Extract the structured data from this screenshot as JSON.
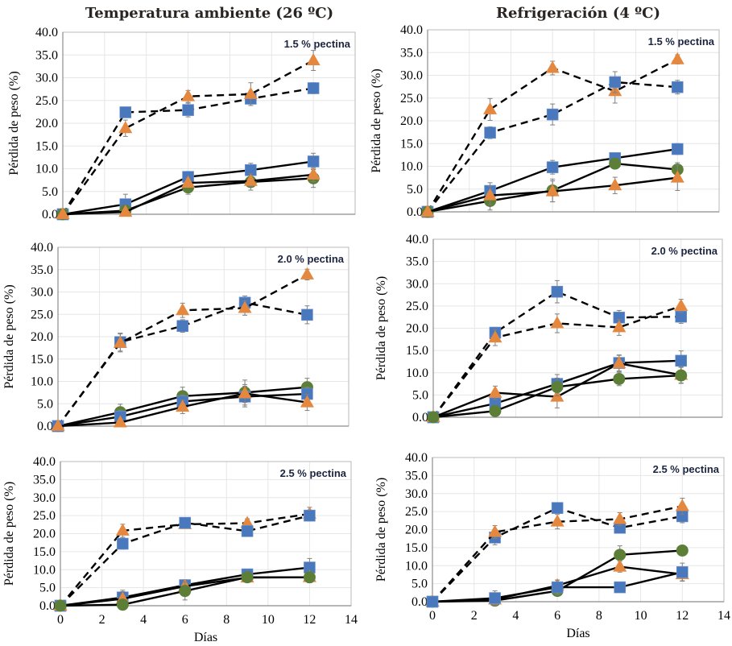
{
  "colors": {
    "blue": "#4a78bd",
    "orange": "#e4873f",
    "green": "#5c7e37",
    "line": "#000000",
    "grid": "#e6e6e6",
    "axis": "#8c8c8c",
    "errorbar": "#808080"
  },
  "columns": [
    {
      "title": "Temperatura ambiente (26 ºC)"
    },
    {
      "title": "Refrigeración (4 ºC)"
    }
  ],
  "chart_data": [
    {
      "type": "line",
      "column": "Temperatura ambiente (26 ºC)",
      "label": "1.5 % pectina",
      "xlabel": "",
      "ylabel": "Pérdida de peso (%)",
      "xlim": [
        0,
        14
      ],
      "ylim": [
        0,
        40
      ],
      "xticks": [],
      "yticks": [
        "0.0",
        "5.0",
        "10.0",
        "15.0",
        "20.0",
        "25.0",
        "30.0",
        "35.0",
        "40.0"
      ],
      "grid": true,
      "x": [
        0,
        3,
        6,
        9,
        12
      ],
      "series": [
        {
          "name": "blue-dashed",
          "marker": "square",
          "color": "blue",
          "style": "dashed",
          "values": [
            0,
            22.4,
            22.9,
            25.4,
            27.7
          ],
          "err": [
            0,
            1.0,
            1.5,
            1.5,
            1.2
          ]
        },
        {
          "name": "orange-dashed",
          "marker": "triangle",
          "color": "orange",
          "style": "dashed",
          "values": [
            0,
            18.9,
            25.9,
            26.4,
            33.8
          ],
          "err": [
            0,
            1.8,
            1.3,
            2.5,
            2.2
          ]
        },
        {
          "name": "blue-solid",
          "marker": "square",
          "color": "blue",
          "style": "solid",
          "values": [
            0,
            2.2,
            8.2,
            9.7,
            11.6
          ],
          "err": [
            0,
            2.2,
            1.2,
            1.5,
            1.8
          ]
        },
        {
          "name": "green-solid",
          "marker": "circle",
          "color": "green",
          "style": "solid",
          "values": [
            0,
            0.8,
            5.9,
            7.1,
            7.9
          ],
          "err": [
            0,
            0.5,
            1.5,
            1.8,
            2.0
          ]
        },
        {
          "name": "orange-solid",
          "marker": "triangle",
          "color": "orange",
          "style": "solid",
          "values": [
            0,
            0.5,
            6.9,
            7.3,
            8.7
          ],
          "err": [
            0,
            0.5,
            1.0,
            1.2,
            1.5
          ]
        }
      ]
    },
    {
      "type": "line",
      "column": "Refrigeración (4 ºC)",
      "label": "1.5 % pectina",
      "xlabel": "",
      "ylabel": "Pérdida de peso (%)",
      "xlim": [
        0,
        14
      ],
      "ylim": [
        0,
        40
      ],
      "xticks": [],
      "yticks": [
        "0.0",
        "5.0",
        "10.0",
        "15.0",
        "20.0",
        "25.0",
        "30.0",
        "35.0",
        "40.0"
      ],
      "grid": true,
      "x": [
        0,
        3,
        6,
        9,
        12
      ],
      "series": [
        {
          "name": "orange-dashed",
          "marker": "triangle",
          "color": "orange",
          "style": "dashed",
          "values": [
            0,
            22.5,
            31.6,
            26.5,
            33.5
          ],
          "err": [
            0,
            2.4,
            1.5,
            2.6,
            1.0
          ]
        },
        {
          "name": "blue-dashed",
          "marker": "square",
          "color": "blue",
          "style": "dashed",
          "values": [
            0,
            17.4,
            21.4,
            28.5,
            27.4
          ],
          "err": [
            0,
            1.3,
            2.3,
            2.3,
            1.5
          ]
        },
        {
          "name": "blue-solid",
          "marker": "square",
          "color": "blue",
          "style": "solid",
          "values": [
            0,
            4.6,
            9.8,
            11.8,
            13.8
          ],
          "err": [
            0,
            1.8,
            1.5,
            1.2,
            1.2
          ]
        },
        {
          "name": "green-solid",
          "marker": "circle",
          "color": "green",
          "style": "solid",
          "values": [
            0,
            2.4,
            4.7,
            10.6,
            9.3
          ],
          "err": [
            0,
            2.0,
            2.5,
            1.0,
            1.5
          ]
        },
        {
          "name": "orange-solid",
          "marker": "triangle",
          "color": "orange",
          "style": "solid",
          "values": [
            0,
            3.6,
            4.5,
            5.8,
            7.5
          ],
          "err": [
            0,
            2.0,
            2.3,
            1.8,
            2.8
          ]
        }
      ]
    },
    {
      "type": "line",
      "column": "Temperatura ambiente (26 ºC)",
      "label": "2.0 % pectina",
      "xlabel": "",
      "ylabel": "Pérdida de peso (%)",
      "xlim": [
        0,
        14
      ],
      "ylim": [
        0,
        40
      ],
      "xticks": [],
      "yticks": [
        "0.0",
        "5.0",
        "10.0",
        "15.0",
        "20.0",
        "25.0",
        "30.0",
        "35.0",
        "40.0"
      ],
      "grid": true,
      "x": [
        0,
        3,
        6,
        9,
        12
      ],
      "series": [
        {
          "name": "blue-dashed",
          "marker": "square",
          "color": "blue",
          "style": "dashed",
          "values": [
            0,
            18.8,
            22.4,
            27.6,
            24.9
          ],
          "err": [
            0,
            2.0,
            1.4,
            1.5,
            2.0
          ]
        },
        {
          "name": "orange-dashed",
          "marker": "triangle",
          "color": "orange",
          "style": "dashed",
          "values": [
            0,
            18.6,
            25.9,
            26.4,
            33.9
          ],
          "err": [
            0,
            2.0,
            1.6,
            1.6,
            1.2
          ]
        },
        {
          "name": "green-solid",
          "marker": "circle",
          "color": "green",
          "style": "solid",
          "values": [
            0,
            3.1,
            6.7,
            7.5,
            8.7
          ],
          "err": [
            0,
            1.8,
            2.0,
            2.8,
            2.0
          ]
        },
        {
          "name": "blue-solid",
          "marker": "square",
          "color": "blue",
          "style": "solid",
          "values": [
            0,
            2.1,
            5.5,
            6.6,
            7.2
          ],
          "err": [
            0,
            1.5,
            1.5,
            2.3,
            1.5
          ]
        },
        {
          "name": "orange-solid",
          "marker": "triangle",
          "color": "orange",
          "style": "solid",
          "values": [
            0,
            0.8,
            4.3,
            7.3,
            5.3
          ],
          "err": [
            0,
            0.5,
            1.5,
            2.0,
            1.8
          ]
        }
      ]
    },
    {
      "type": "line",
      "column": "Refrigeración (4 ºC)",
      "label": "2.0 % pectina",
      "xlabel": "",
      "ylabel": "Pérdida de peso (%)",
      "xlim": [
        0,
        14
      ],
      "ylim": [
        0,
        40
      ],
      "xticks": [],
      "yticks": [
        "0.0",
        "5.0",
        "10.0",
        "15.0",
        "20.0",
        "25.0",
        "30.0",
        "35.0",
        "40.0"
      ],
      "grid": true,
      "x": [
        0,
        3,
        6,
        9,
        12
      ],
      "series": [
        {
          "name": "blue-dashed",
          "marker": "square",
          "color": "blue",
          "style": "dashed",
          "values": [
            0,
            19.0,
            28.2,
            22.4,
            22.6
          ],
          "err": [
            0,
            1.2,
            2.5,
            1.6,
            1.5
          ]
        },
        {
          "name": "orange-dashed",
          "marker": "triangle",
          "color": "orange",
          "style": "dashed",
          "values": [
            0,
            17.9,
            21.1,
            20.2,
            25.0
          ],
          "err": [
            0,
            1.8,
            2.1,
            1.8,
            1.5
          ]
        },
        {
          "name": "blue-solid",
          "marker": "square",
          "color": "blue",
          "style": "solid",
          "values": [
            0,
            3.1,
            7.5,
            12.2,
            12.7
          ],
          "err": [
            0,
            1.5,
            2.1,
            1.8,
            2.2
          ]
        },
        {
          "name": "orange-solid",
          "marker": "triangle",
          "color": "orange",
          "style": "solid",
          "values": [
            0,
            5.5,
            4.6,
            12.1,
            9.5
          ],
          "err": [
            0,
            1.5,
            2.5,
            1.8,
            1.8
          ]
        },
        {
          "name": "green-solid",
          "marker": "circle",
          "color": "green",
          "style": "solid",
          "values": [
            0,
            1.4,
            6.8,
            8.6,
            9.4
          ],
          "err": [
            0,
            0.8,
            2.0,
            1.5,
            1.8
          ]
        }
      ]
    },
    {
      "type": "line",
      "column": "Temperatura ambiente (26 ºC)",
      "label": "2.5 % pectina",
      "xlabel": "Días",
      "ylabel": "Pérdida de peso (%)",
      "xlim": [
        0,
        14
      ],
      "ylim": [
        0,
        40
      ],
      "xticks": [
        "0",
        "2",
        "4",
        "6",
        "8",
        "10",
        "12",
        "14"
      ],
      "yticks": [
        "0.0",
        "5.0",
        "10.0",
        "15.0",
        "20.0",
        "25.0",
        "30.0",
        "35.0",
        "40.0"
      ],
      "grid": true,
      "x": [
        0,
        3,
        6,
        9,
        12
      ],
      "series": [
        {
          "name": "orange-dashed",
          "marker": "triangle",
          "color": "orange",
          "style": "dashed",
          "values": [
            0,
            20.8,
            22.6,
            22.9,
            25.5
          ],
          "err": [
            0,
            1.8,
            1.0,
            1.2,
            1.8
          ]
        },
        {
          "name": "blue-dashed",
          "marker": "square",
          "color": "blue",
          "style": "dashed",
          "values": [
            0,
            17.2,
            23.0,
            20.7,
            25.0
          ],
          "err": [
            0,
            1.5,
            1.2,
            1.0,
            1.5
          ]
        },
        {
          "name": "blue-solid",
          "marker": "square",
          "color": "blue",
          "style": "solid",
          "values": [
            0,
            2.3,
            5.7,
            8.7,
            10.6
          ],
          "err": [
            0,
            2.0,
            1.5,
            1.2,
            2.5
          ]
        },
        {
          "name": "orange-solid",
          "marker": "triangle",
          "color": "orange",
          "style": "solid",
          "values": [
            0,
            1.9,
            5.4,
            7.8,
            7.9
          ],
          "err": [
            0,
            2.0,
            1.5,
            1.0,
            1.5
          ]
        },
        {
          "name": "green-solid",
          "marker": "circle",
          "color": "green",
          "style": "solid",
          "values": [
            0,
            0.3,
            4.1,
            7.9,
            7.9
          ],
          "err": [
            0,
            0.5,
            2.5,
            1.2,
            1.5
          ]
        }
      ]
    },
    {
      "type": "line",
      "column": "Refrigeración (4 ºC)",
      "label": "2.5 % pectina",
      "xlabel": "Días",
      "ylabel": "Pérdida de peso (%)",
      "xlim": [
        0,
        14
      ],
      "ylim": [
        0,
        40
      ],
      "xticks": [
        "0",
        "2",
        "4",
        "6",
        "8",
        "10",
        "12",
        "14"
      ],
      "yticks": [
        "0.0",
        "5.0",
        "10.0",
        "15.0",
        "20.0",
        "25.0",
        "30.0",
        "35.0",
        "40.0"
      ],
      "grid": true,
      "x": [
        0,
        3,
        6,
        9,
        12
      ],
      "series": [
        {
          "name": "blue-dashed",
          "marker": "square",
          "color": "blue",
          "style": "dashed",
          "values": [
            0,
            17.8,
            26.0,
            20.5,
            23.7
          ],
          "err": [
            0,
            2.0,
            1.2,
            1.2,
            1.8
          ]
        },
        {
          "name": "orange-dashed",
          "marker": "triangle",
          "color": "orange",
          "style": "dashed",
          "values": [
            0,
            19.3,
            22.2,
            22.9,
            26.5
          ],
          "err": [
            0,
            1.8,
            2.0,
            1.8,
            2.2
          ]
        },
        {
          "name": "green-solid",
          "marker": "circle",
          "color": "green",
          "style": "solid",
          "values": [
            0,
            0.3,
            3.0,
            13.0,
            14.2
          ],
          "err": [
            0,
            0.5,
            1.0,
            2.5,
            0.8
          ]
        },
        {
          "name": "orange-solid",
          "marker": "triangle",
          "color": "orange",
          "style": "solid",
          "values": [
            0,
            0.6,
            4.5,
            9.7,
            7.6
          ],
          "err": [
            0,
            1.5,
            1.5,
            1.5,
            1.8
          ]
        },
        {
          "name": "blue-solid",
          "marker": "square",
          "color": "blue",
          "style": "solid",
          "values": [
            0,
            1.0,
            4.0,
            4.0,
            8.2
          ],
          "err": [
            0,
            2.0,
            2.0,
            0.5,
            2.5
          ]
        }
      ]
    }
  ]
}
